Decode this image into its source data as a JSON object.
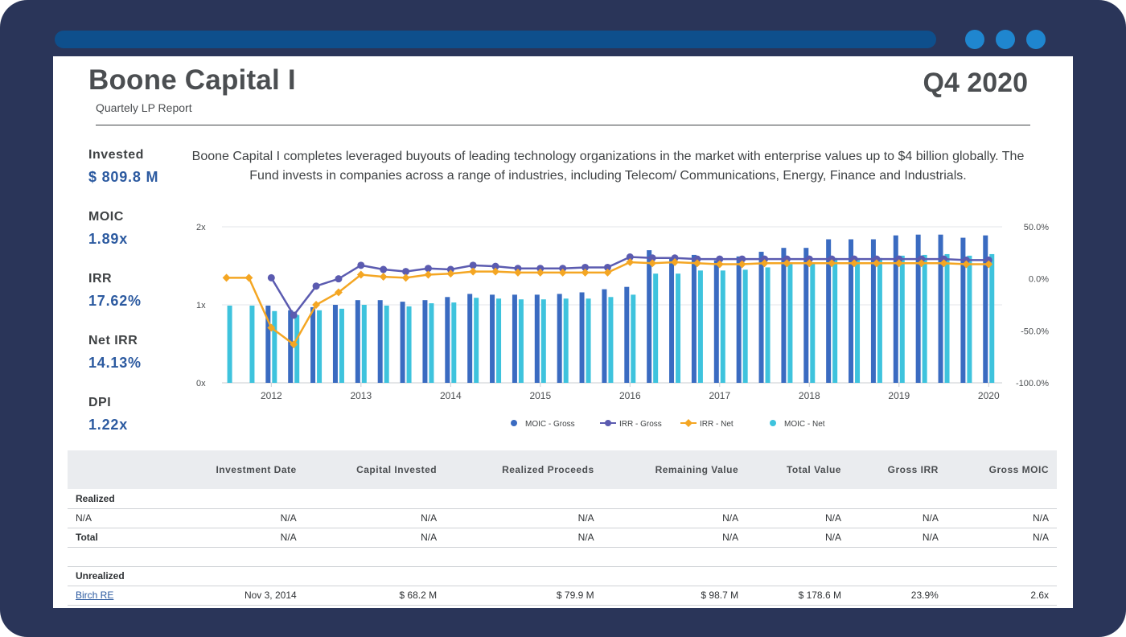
{
  "header": {
    "fund_name": "Boone Capital I",
    "subtitle": "Quartely LP Report",
    "quarter": "Q4 2020"
  },
  "stats": [
    {
      "label": "Invested",
      "value": "$ 809.8 M"
    },
    {
      "label": "MOIC",
      "value": "1.89x"
    },
    {
      "label": "IRR",
      "value": "17.62%"
    },
    {
      "label": "Net IRR",
      "value": "14.13%"
    },
    {
      "label": "DPI",
      "value": "1.22x"
    }
  ],
  "description": "Boone Capital I completes leveraged buyouts of leading technology organizations in the market with enterprise values up to $4 billion globally. The Fund invests in companies across a range of industries, including Telecom/ Communications, Energy, Finance and Industrials.",
  "chart_data": {
    "type": "bar",
    "x_tick_labels": [
      "2012",
      "2013",
      "2014",
      "2015",
      "2016",
      "2017",
      "2018",
      "2019",
      "2020"
    ],
    "x": [
      2011.5,
      2011.75,
      2012.0,
      2012.25,
      2012.5,
      2012.75,
      2013.0,
      2013.25,
      2013.5,
      2013.75,
      2014.0,
      2014.25,
      2014.5,
      2014.75,
      2015.0,
      2015.25,
      2015.5,
      2015.75,
      2016.0,
      2016.25,
      2016.5,
      2016.75,
      2017.0,
      2017.25,
      2017.5,
      2017.75,
      2018.0,
      2018.25,
      2018.5,
      2018.75,
      2019.0,
      2019.25,
      2019.5,
      2019.75,
      2020.0
    ],
    "left_axis": {
      "ticks": [
        "0x",
        "1x",
        "2x"
      ],
      "ylim": [
        0,
        2
      ]
    },
    "right_axis": {
      "ticks": [
        "-100.0%",
        "-50.0%",
        "0.0%",
        "50.0%"
      ],
      "ylim": [
        -100,
        50
      ]
    },
    "grid": true,
    "legend_position": "bottom",
    "series": [
      {
        "name": "MOIC - Gross",
        "type": "bar",
        "axis": "left",
        "color": "#3a6bc1",
        "values": [
          null,
          null,
          0.99,
          0.93,
          0.97,
          1.0,
          1.06,
          1.06,
          1.04,
          1.06,
          1.1,
          1.14,
          1.13,
          1.13,
          1.13,
          1.14,
          1.16,
          1.2,
          1.23,
          1.7,
          1.6,
          1.64,
          1.57,
          1.62,
          1.68,
          1.73,
          1.73,
          1.84,
          1.84,
          1.84,
          1.89,
          1.9,
          1.9,
          1.86,
          1.89
        ]
      },
      {
        "name": "IRR - Gross",
        "type": "line",
        "axis": "right",
        "color": "#5b5bb0",
        "values": [
          null,
          null,
          1,
          -35,
          -7,
          0,
          13,
          9,
          7,
          10,
          9,
          13,
          12,
          10,
          10,
          10,
          11,
          11,
          21,
          20,
          20,
          19,
          19,
          19,
          19,
          19,
          19,
          19,
          19,
          19,
          19,
          19,
          19,
          18,
          18
        ]
      },
      {
        "name": "IRR - Net",
        "type": "line",
        "axis": "right",
        "color": "#f4a623",
        "values": [
          1,
          1,
          -47,
          -63,
          -25,
          -13,
          4,
          2,
          1,
          4,
          5,
          7,
          7,
          6,
          6,
          6,
          6,
          6,
          16,
          15,
          16,
          15,
          14,
          14,
          15,
          15,
          15,
          15,
          15,
          15,
          15,
          15,
          15,
          14,
          14
        ]
      },
      {
        "name": "MOIC - Net",
        "type": "bar",
        "axis": "left",
        "color": "#3ec3dd",
        "values": [
          0.99,
          0.99,
          0.92,
          0.87,
          0.93,
          0.95,
          1.0,
          0.99,
          0.98,
          1.02,
          1.03,
          1.09,
          1.08,
          1.07,
          1.07,
          1.08,
          1.08,
          1.1,
          1.13,
          1.4,
          1.4,
          1.44,
          1.44,
          1.45,
          1.48,
          1.52,
          1.54,
          1.6,
          1.6,
          1.6,
          1.63,
          1.64,
          1.65,
          1.63,
          1.65
        ]
      }
    ]
  },
  "table": {
    "columns": [
      "",
      "Investment Date",
      "Capital Invested",
      "Realized Proceeds",
      "Remaining Value",
      "Total Value",
      "Gross IRR",
      "Gross MOIC"
    ],
    "realized_label": "Realized",
    "realized_rows": [
      [
        "N/A",
        "N/A",
        "N/A",
        "N/A",
        "N/A",
        "N/A",
        "N/A",
        "N/A"
      ],
      [
        "Total",
        "N/A",
        "N/A",
        "N/A",
        "N/A",
        "N/A",
        "N/A",
        "N/A"
      ]
    ],
    "unrealized_label": "Unrealized",
    "unrealized_rows": [
      [
        "Birch RE",
        "Nov 3, 2014",
        "$ 68.2 M",
        "$ 79.9 M",
        "$ 98.7 M",
        "$ 178.6 M",
        "23.9%",
        "2.6x"
      ]
    ]
  },
  "colors": {
    "frame": "#2a3559",
    "url_bar": "#0e4f8c",
    "window_dots": "#1f86cf",
    "accent_text": "#2c5aa0"
  }
}
